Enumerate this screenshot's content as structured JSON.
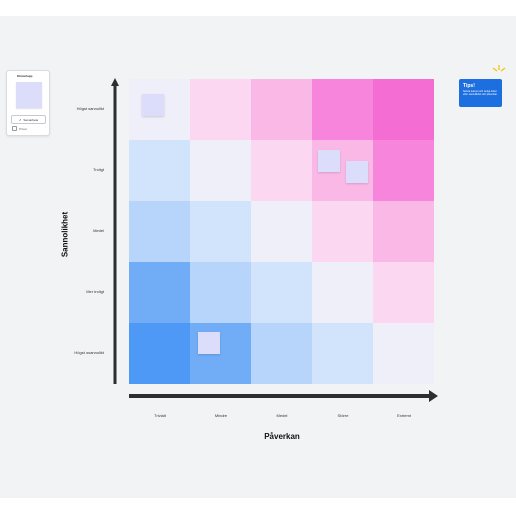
{
  "panel": {
    "title": "Klisterlapp",
    "button_label": "Samarbeta",
    "checkbox_label": "Privat"
  },
  "tip": {
    "title": "Tips!",
    "text": "Samla teamet och ranka risker efter sannolikhet och påverkan."
  },
  "axes": {
    "y_title": "Sannolikhet",
    "x_title": "Påverkan",
    "rows": [
      "Högst sannolikt",
      "Troligt",
      "Medel",
      "Mer troligt",
      "Högst osannolikt"
    ],
    "cols": [
      "Trivialt",
      "Mindre",
      "Medel",
      "Större",
      "Extremt"
    ]
  },
  "matrix_colors": [
    [
      "#efeffa",
      "#fbd7f1",
      "#fab8e7",
      "#f785db",
      "#f46dd2"
    ],
    [
      "#d2e4fb",
      "#efeffa",
      "#fbd7f1",
      "#fab8e7",
      "#f785db"
    ],
    [
      "#b7d4fa",
      "#d2e4fb",
      "#efeffa",
      "#fbd7f1",
      "#fab8e7"
    ],
    [
      "#70adf6",
      "#b7d4fa",
      "#d2e4fb",
      "#efeffa",
      "#fbd7f1"
    ],
    [
      "#4d99f5",
      "#70adf6",
      "#b7d4fa",
      "#d2e4fb",
      "#efeffa"
    ]
  ],
  "sticky_color": "#dcdcfb",
  "accent": "#1d6fe0",
  "icons": {
    "y_arrow": "arrow-up-icon",
    "x_arrow": "arrow-right-icon",
    "sparkle": "sparkle-icon",
    "share": "share-icon"
  }
}
